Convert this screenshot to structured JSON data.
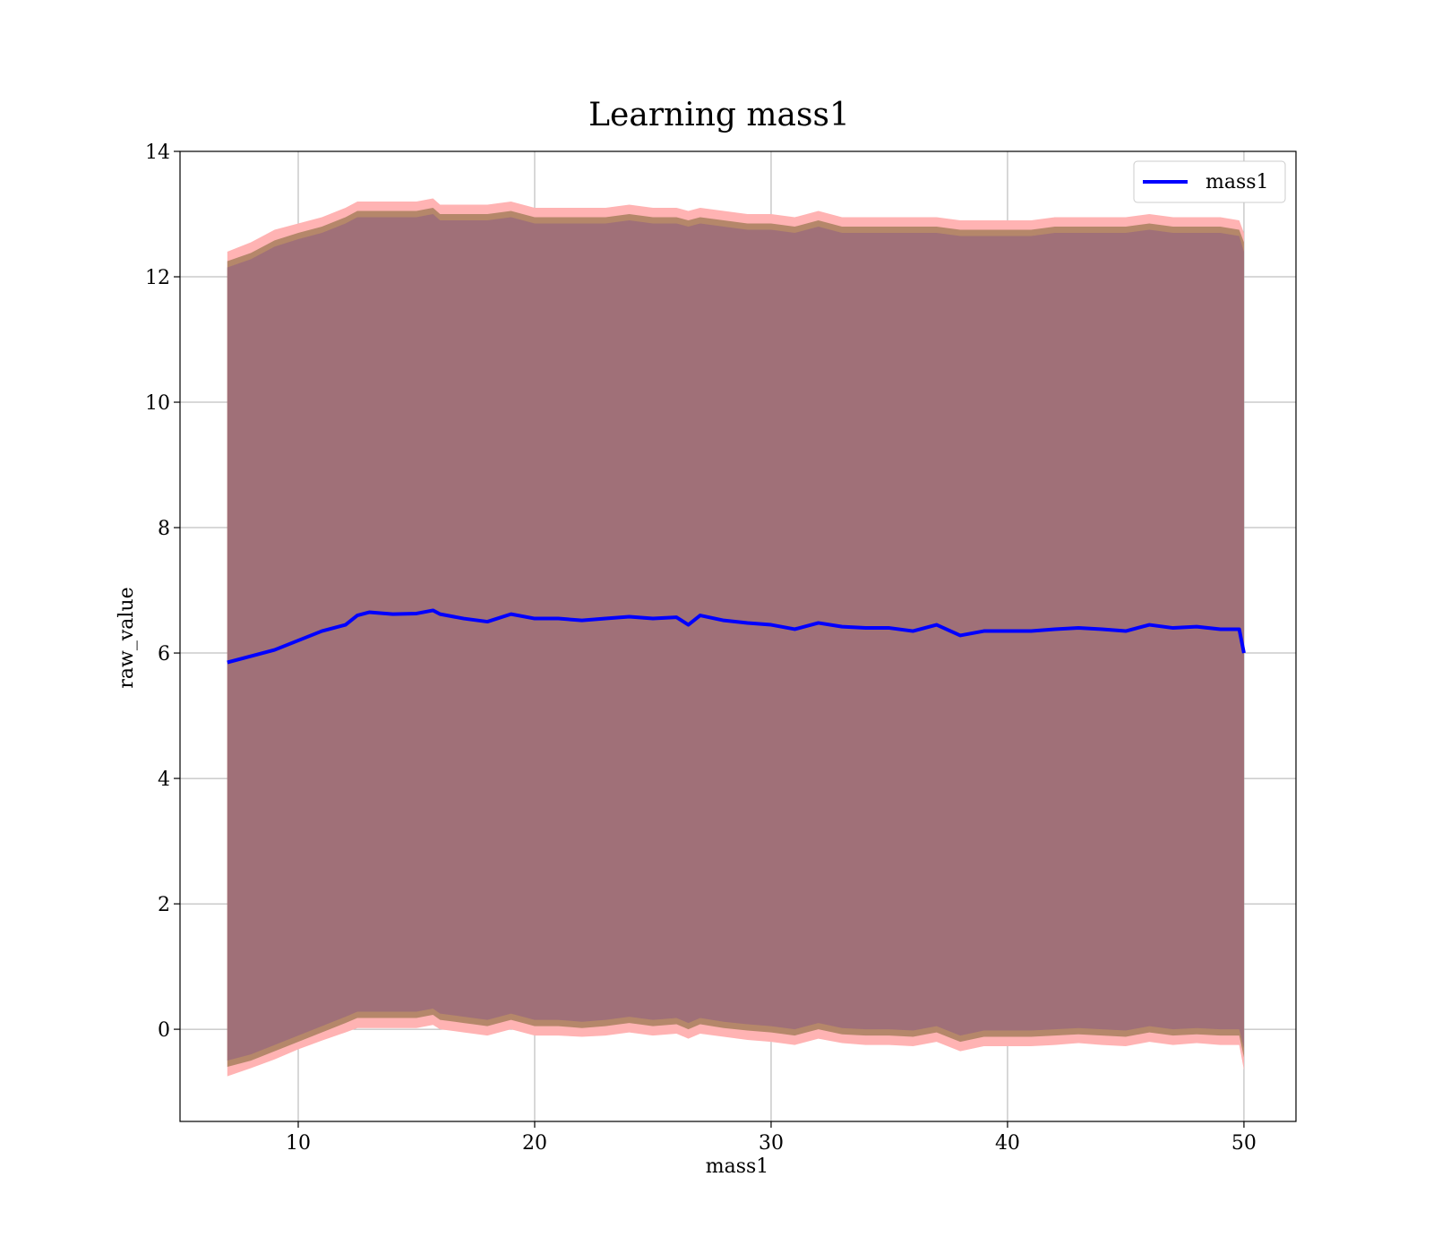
{
  "chart_data": {
    "type": "line",
    "title": "Learning mass1",
    "xlabel": "mass1",
    "ylabel": "raw_value",
    "xlim": [
      5,
      52.2
    ],
    "ylim": [
      -1.47,
      14
    ],
    "xticks": [
      10,
      20,
      30,
      40,
      50
    ],
    "yticks": [
      0,
      2,
      4,
      6,
      8,
      10,
      12,
      14
    ],
    "grid": true,
    "legend": {
      "position": "top-right",
      "entries": [
        "mass1"
      ]
    },
    "colors": {
      "line": "#0000ff",
      "band_outer": "#ffb3b3",
      "band_mid": "#b5876a",
      "band_inner": "#a07078",
      "grid": "#b0b0b0"
    },
    "series": [
      {
        "name": "mass1",
        "x": [
          7.0,
          8.0,
          9.0,
          10.0,
          11.0,
          12.0,
          12.5,
          13.0,
          14.0,
          15.0,
          15.7,
          16.0,
          17.0,
          18.0,
          19.0,
          20.0,
          21.0,
          22.0,
          23.0,
          24.0,
          25.0,
          26.0,
          26.5,
          27.0,
          28.0,
          29.0,
          30.0,
          31.0,
          32.0,
          33.0,
          34.0,
          35.0,
          36.0,
          37.0,
          38.0,
          39.0,
          40.0,
          41.0,
          42.0,
          43.0,
          44.0,
          45.0,
          46.0,
          47.0,
          48.0,
          49.0,
          49.8,
          50.0
        ],
        "y": [
          5.85,
          5.95,
          6.05,
          6.2,
          6.35,
          6.45,
          6.6,
          6.65,
          6.62,
          6.63,
          6.68,
          6.62,
          6.55,
          6.5,
          6.62,
          6.55,
          6.55,
          6.52,
          6.55,
          6.58,
          6.55,
          6.57,
          6.45,
          6.6,
          6.52,
          6.48,
          6.45,
          6.38,
          6.48,
          6.42,
          6.4,
          6.4,
          6.35,
          6.45,
          6.28,
          6.35,
          6.35,
          6.35,
          6.38,
          6.4,
          6.38,
          6.35,
          6.45,
          6.4,
          6.42,
          6.38,
          6.38,
          6.0
        ],
        "upper_outer": [
          12.4,
          12.55,
          12.75,
          12.85,
          12.95,
          13.1,
          13.2,
          13.2,
          13.2,
          13.2,
          13.25,
          13.15,
          13.15,
          13.15,
          13.2,
          13.1,
          13.1,
          13.1,
          13.1,
          13.15,
          13.1,
          13.1,
          13.05,
          13.1,
          13.05,
          13.0,
          13.0,
          12.95,
          13.05,
          12.95,
          12.95,
          12.95,
          12.95,
          12.95,
          12.9,
          12.9,
          12.9,
          12.9,
          12.95,
          12.95,
          12.95,
          12.95,
          13.0,
          12.95,
          12.95,
          12.95,
          12.9,
          12.7
        ],
        "upper_mid": [
          12.25,
          12.38,
          12.58,
          12.7,
          12.8,
          12.95,
          13.05,
          13.05,
          13.05,
          13.05,
          13.1,
          13.0,
          13.0,
          13.0,
          13.05,
          12.95,
          12.95,
          12.95,
          12.95,
          13.0,
          12.95,
          12.95,
          12.9,
          12.95,
          12.9,
          12.85,
          12.85,
          12.8,
          12.9,
          12.8,
          12.8,
          12.8,
          12.8,
          12.8,
          12.75,
          12.75,
          12.75,
          12.75,
          12.8,
          12.8,
          12.8,
          12.8,
          12.85,
          12.8,
          12.8,
          12.8,
          12.75,
          12.55
        ],
        "upper_inner": [
          12.15,
          12.28,
          12.48,
          12.6,
          12.7,
          12.85,
          12.95,
          12.95,
          12.95,
          12.95,
          13.0,
          12.9,
          12.9,
          12.9,
          12.95,
          12.85,
          12.85,
          12.85,
          12.85,
          12.9,
          12.85,
          12.85,
          12.8,
          12.85,
          12.8,
          12.75,
          12.75,
          12.7,
          12.8,
          12.7,
          12.7,
          12.7,
          12.7,
          12.7,
          12.65,
          12.65,
          12.65,
          12.65,
          12.7,
          12.7,
          12.7,
          12.7,
          12.75,
          12.7,
          12.7,
          12.7,
          12.65,
          12.4
        ],
        "lower_inner": [
          -0.5,
          -0.4,
          -0.25,
          -0.1,
          0.05,
          0.2,
          0.28,
          0.28,
          0.28,
          0.28,
          0.33,
          0.25,
          0.2,
          0.15,
          0.25,
          0.15,
          0.15,
          0.12,
          0.15,
          0.2,
          0.15,
          0.18,
          0.1,
          0.18,
          0.12,
          0.08,
          0.05,
          0.0,
          0.1,
          0.02,
          0.0,
          0.0,
          -0.02,
          0.05,
          -0.1,
          -0.02,
          -0.02,
          -0.02,
          0.0,
          0.02,
          0.0,
          -0.02,
          0.05,
          0.0,
          0.02,
          0.0,
          0.0,
          -0.3
        ],
        "lower_mid": [
          -0.6,
          -0.5,
          -0.35,
          -0.2,
          -0.05,
          0.1,
          0.18,
          0.18,
          0.18,
          0.18,
          0.23,
          0.15,
          0.1,
          0.05,
          0.15,
          0.05,
          0.05,
          0.02,
          0.05,
          0.1,
          0.05,
          0.08,
          0.0,
          0.08,
          0.02,
          -0.02,
          -0.05,
          -0.1,
          0.0,
          -0.08,
          -0.1,
          -0.1,
          -0.12,
          -0.05,
          -0.2,
          -0.12,
          -0.12,
          -0.12,
          -0.1,
          -0.08,
          -0.1,
          -0.12,
          -0.05,
          -0.1,
          -0.08,
          -0.1,
          -0.1,
          -0.45
        ],
        "lower_outer": [
          -0.75,
          -0.62,
          -0.48,
          -0.32,
          -0.18,
          -0.05,
          0.02,
          0.02,
          0.02,
          0.02,
          0.07,
          0.0,
          -0.05,
          -0.1,
          0.0,
          -0.1,
          -0.1,
          -0.12,
          -0.1,
          -0.05,
          -0.1,
          -0.07,
          -0.15,
          -0.07,
          -0.12,
          -0.17,
          -0.2,
          -0.25,
          -0.15,
          -0.22,
          -0.25,
          -0.25,
          -0.27,
          -0.2,
          -0.35,
          -0.27,
          -0.27,
          -0.27,
          -0.25,
          -0.22,
          -0.25,
          -0.27,
          -0.2,
          -0.25,
          -0.22,
          -0.25,
          -0.25,
          -0.65
        ]
      }
    ]
  }
}
